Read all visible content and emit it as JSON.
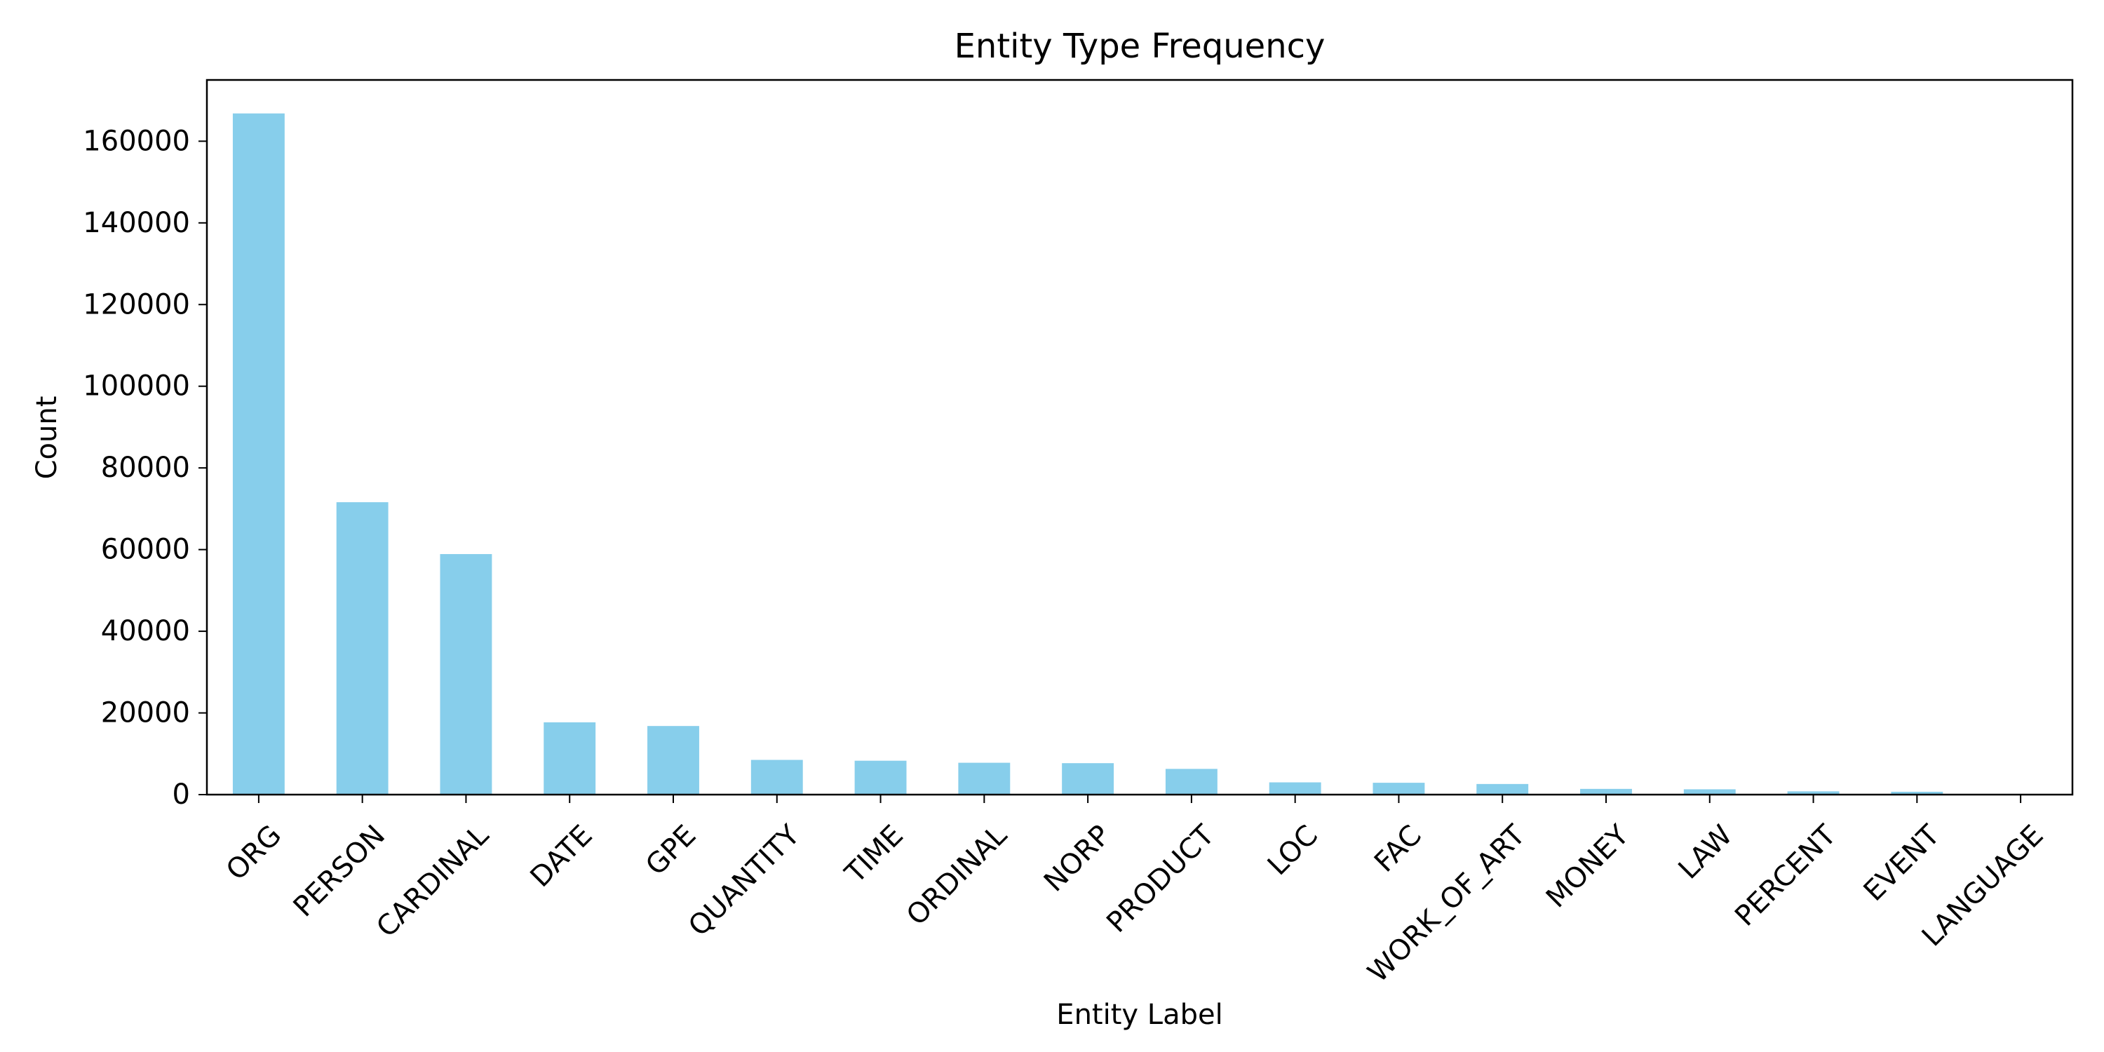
{
  "chart_data": {
    "type": "bar",
    "title": "Entity Type Frequency",
    "xlabel": "Entity Label",
    "ylabel": "Count",
    "categories": [
      "ORG",
      "PERSON",
      "CARDINAL",
      "DATE",
      "GPE",
      "QUANTITY",
      "TIME",
      "ORDINAL",
      "NORP",
      "PRODUCT",
      "LOC",
      "FAC",
      "WORK_OF_ART",
      "MONEY",
      "LAW",
      "PERCENT",
      "EVENT",
      "LANGUAGE"
    ],
    "values": [
      166800,
      71600,
      58900,
      17700,
      16800,
      8500,
      8300,
      7800,
      7700,
      6300,
      3000,
      2900,
      2600,
      1400,
      1300,
      800,
      700,
      100
    ],
    "ylim": [
      0,
      175000
    ],
    "yticks": [
      0,
      20000,
      40000,
      60000,
      80000,
      100000,
      120000,
      140000,
      160000
    ],
    "bar_color": "#87CEEB",
    "grid": false,
    "legend": "none"
  }
}
